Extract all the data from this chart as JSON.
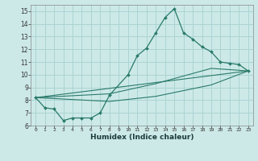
{
  "xlabel": "Humidex (Indice chaleur)",
  "ylabel": "",
  "background_color": "#cce9e8",
  "grid_color": "#aad4d3",
  "line_color": "#2a7a6a",
  "xlim": [
    -0.5,
    23.5
  ],
  "ylim": [
    6,
    15.5
  ],
  "xticks": [
    0,
    1,
    2,
    3,
    4,
    5,
    6,
    7,
    8,
    9,
    10,
    11,
    12,
    13,
    14,
    15,
    16,
    17,
    18,
    19,
    20,
    21,
    22,
    23
  ],
  "yticks": [
    6,
    7,
    8,
    9,
    10,
    11,
    12,
    13,
    14,
    15
  ],
  "line1_x": [
    0,
    1,
    2,
    3,
    4,
    5,
    6,
    7,
    8,
    10,
    11,
    12,
    13,
    14,
    15,
    16,
    17,
    18,
    19,
    20,
    21,
    22,
    23
  ],
  "line1_y": [
    8.2,
    7.4,
    7.3,
    6.4,
    6.6,
    6.6,
    6.6,
    7.0,
    8.4,
    10.0,
    11.5,
    12.1,
    13.3,
    14.5,
    15.2,
    13.3,
    12.8,
    12.2,
    11.8,
    11.0,
    10.9,
    10.8,
    10.3
  ],
  "line2_x": [
    0,
    23
  ],
  "line2_y": [
    8.2,
    10.3
  ],
  "line3_x": [
    0,
    8,
    13,
    19,
    23
  ],
  "line3_y": [
    8.2,
    8.5,
    9.3,
    10.5,
    10.3
  ],
  "line4_x": [
    0,
    8,
    13,
    19,
    23
  ],
  "line4_y": [
    8.2,
    7.9,
    8.3,
    9.2,
    10.3
  ]
}
